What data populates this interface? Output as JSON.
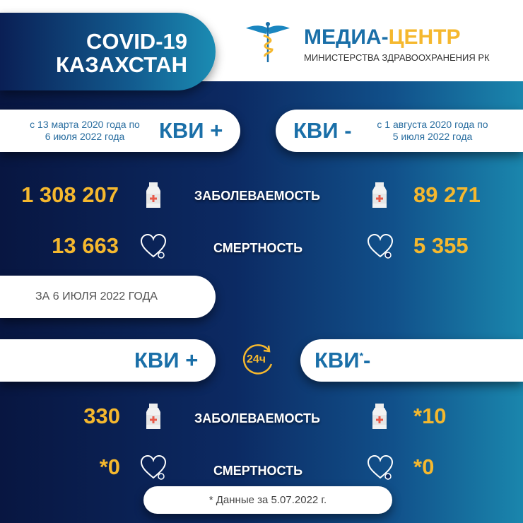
{
  "header": {
    "line1": "COVID-19",
    "line2": "КАЗАХСТАН"
  },
  "logo": {
    "brand_a": "МЕДИА-",
    "brand_b": "ЦЕНТР",
    "subtitle": "МИНИСТЕРСТВА ЗДРАВООХРАНЕНИЯ РК",
    "icon": "caduceus-icon"
  },
  "cumulative": {
    "plus": {
      "label": "КВИ +",
      "period_line1": "с 13 марта 2020 года по",
      "period_line2": "6 июля 2022 года",
      "cases": "1 308 207",
      "deaths": "13 663"
    },
    "minus": {
      "label": "КВИ -",
      "period_line1": "с 1 августа 2020 года по",
      "period_line2": "5 июля 2022 года",
      "cases": "89 271",
      "deaths": "5 355"
    }
  },
  "labels": {
    "cases": "ЗАБОЛЕВАЕМОСТЬ",
    "deaths": "СМЕРТНОСТЬ"
  },
  "daily": {
    "date_label": "ЗА 6 ИЮЛЯ 2022 ГОДА",
    "icon_text": "24ч",
    "plus": {
      "label": "КВИ +",
      "cases": "330",
      "deaths": "*0"
    },
    "minus": {
      "label": "КВИ",
      "asterisk": "*",
      "suffix": "-",
      "cases": "*10",
      "deaths": "*0"
    }
  },
  "footnote": "* Данные за 5.07.2022 г.",
  "colors": {
    "accent_yellow": "#f5b82e",
    "brand_blue": "#1a6fa8",
    "bg_dark": "#081641",
    "bg_teal": "#1a86ad"
  }
}
